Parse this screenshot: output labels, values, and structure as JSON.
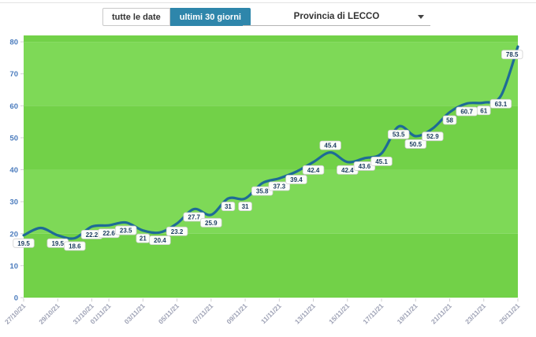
{
  "toolbar": {
    "active_color": "#2e86ab",
    "buttons": [
      {
        "label": "tutte le date",
        "active": false
      },
      {
        "label": "ultimi 30 giorni",
        "active": true
      }
    ],
    "dropdown": {
      "value": "Provincia di LECCO"
    }
  },
  "chart_data": {
    "type": "line",
    "title": "",
    "xlabel": "",
    "ylabel": "",
    "x": [
      "27/10/21",
      "28/10/21",
      "29/10/21",
      "30/10/21",
      "31/10/21",
      "01/11/21",
      "02/11/21",
      "03/11/21",
      "04/11/21",
      "05/11/21",
      "06/11/21",
      "07/11/21",
      "08/11/21",
      "09/11/21",
      "10/11/21",
      "11/11/21",
      "12/11/21",
      "13/11/21",
      "14/11/21",
      "15/11/21",
      "16/11/21",
      "17/11/21",
      "18/11/21",
      "19/11/21",
      "20/11/21",
      "21/11/21",
      "22/11/21",
      "23/11/21",
      "24/11/21",
      "25/11/21"
    ],
    "values": [
      19.5,
      21.8,
      19.5,
      18.6,
      22.2,
      22.6,
      23.5,
      21,
      20.4,
      23.2,
      27.7,
      25.9,
      31,
      31,
      35.8,
      37.3,
      39.4,
      42.4,
      45.4,
      42.4,
      43.6,
      45.1,
      53.5,
      50.5,
      52.9,
      58,
      60.7,
      61,
      63.1,
      78.5
    ],
    "point_labels": [
      "19.5",
      "",
      "19.5",
      "18.6",
      "22.2",
      "22.6",
      "23.5",
      "21",
      "20.4",
      "23.2",
      "27.7",
      "25.9",
      "31",
      "31",
      "35.8",
      "37.3",
      "39.4",
      "42.4",
      "45.4",
      "42.4",
      "43.6",
      "45.1",
      "53.5",
      "50.5",
      "52.9",
      "58",
      "60.7",
      "61",
      "63.1",
      "78.5"
    ],
    "label_above_indices": [
      18
    ],
    "tick_indices": [
      0,
      2,
      4,
      5,
      7,
      9,
      11,
      13,
      15,
      17,
      19,
      21,
      23,
      25,
      27,
      29
    ],
    "yticks": [
      0,
      10,
      20,
      30,
      40,
      50,
      60,
      70,
      80
    ],
    "ylim": [
      0,
      82
    ],
    "grid": "alternating-bands",
    "band_step": 20,
    "legend": "none",
    "colors": {
      "line": "#1e6b96",
      "band_light": "#7ed957",
      "band_dark": "#72d148",
      "y_axis_label": "#4a7bbd",
      "x_axis_label": "#9fa3b6",
      "axis_tick": "#d2d2d2",
      "point_label_text": "#1a3a5f",
      "point_label_bg": "#ffffff",
      "point_label_border": "#d0d0d0"
    }
  }
}
